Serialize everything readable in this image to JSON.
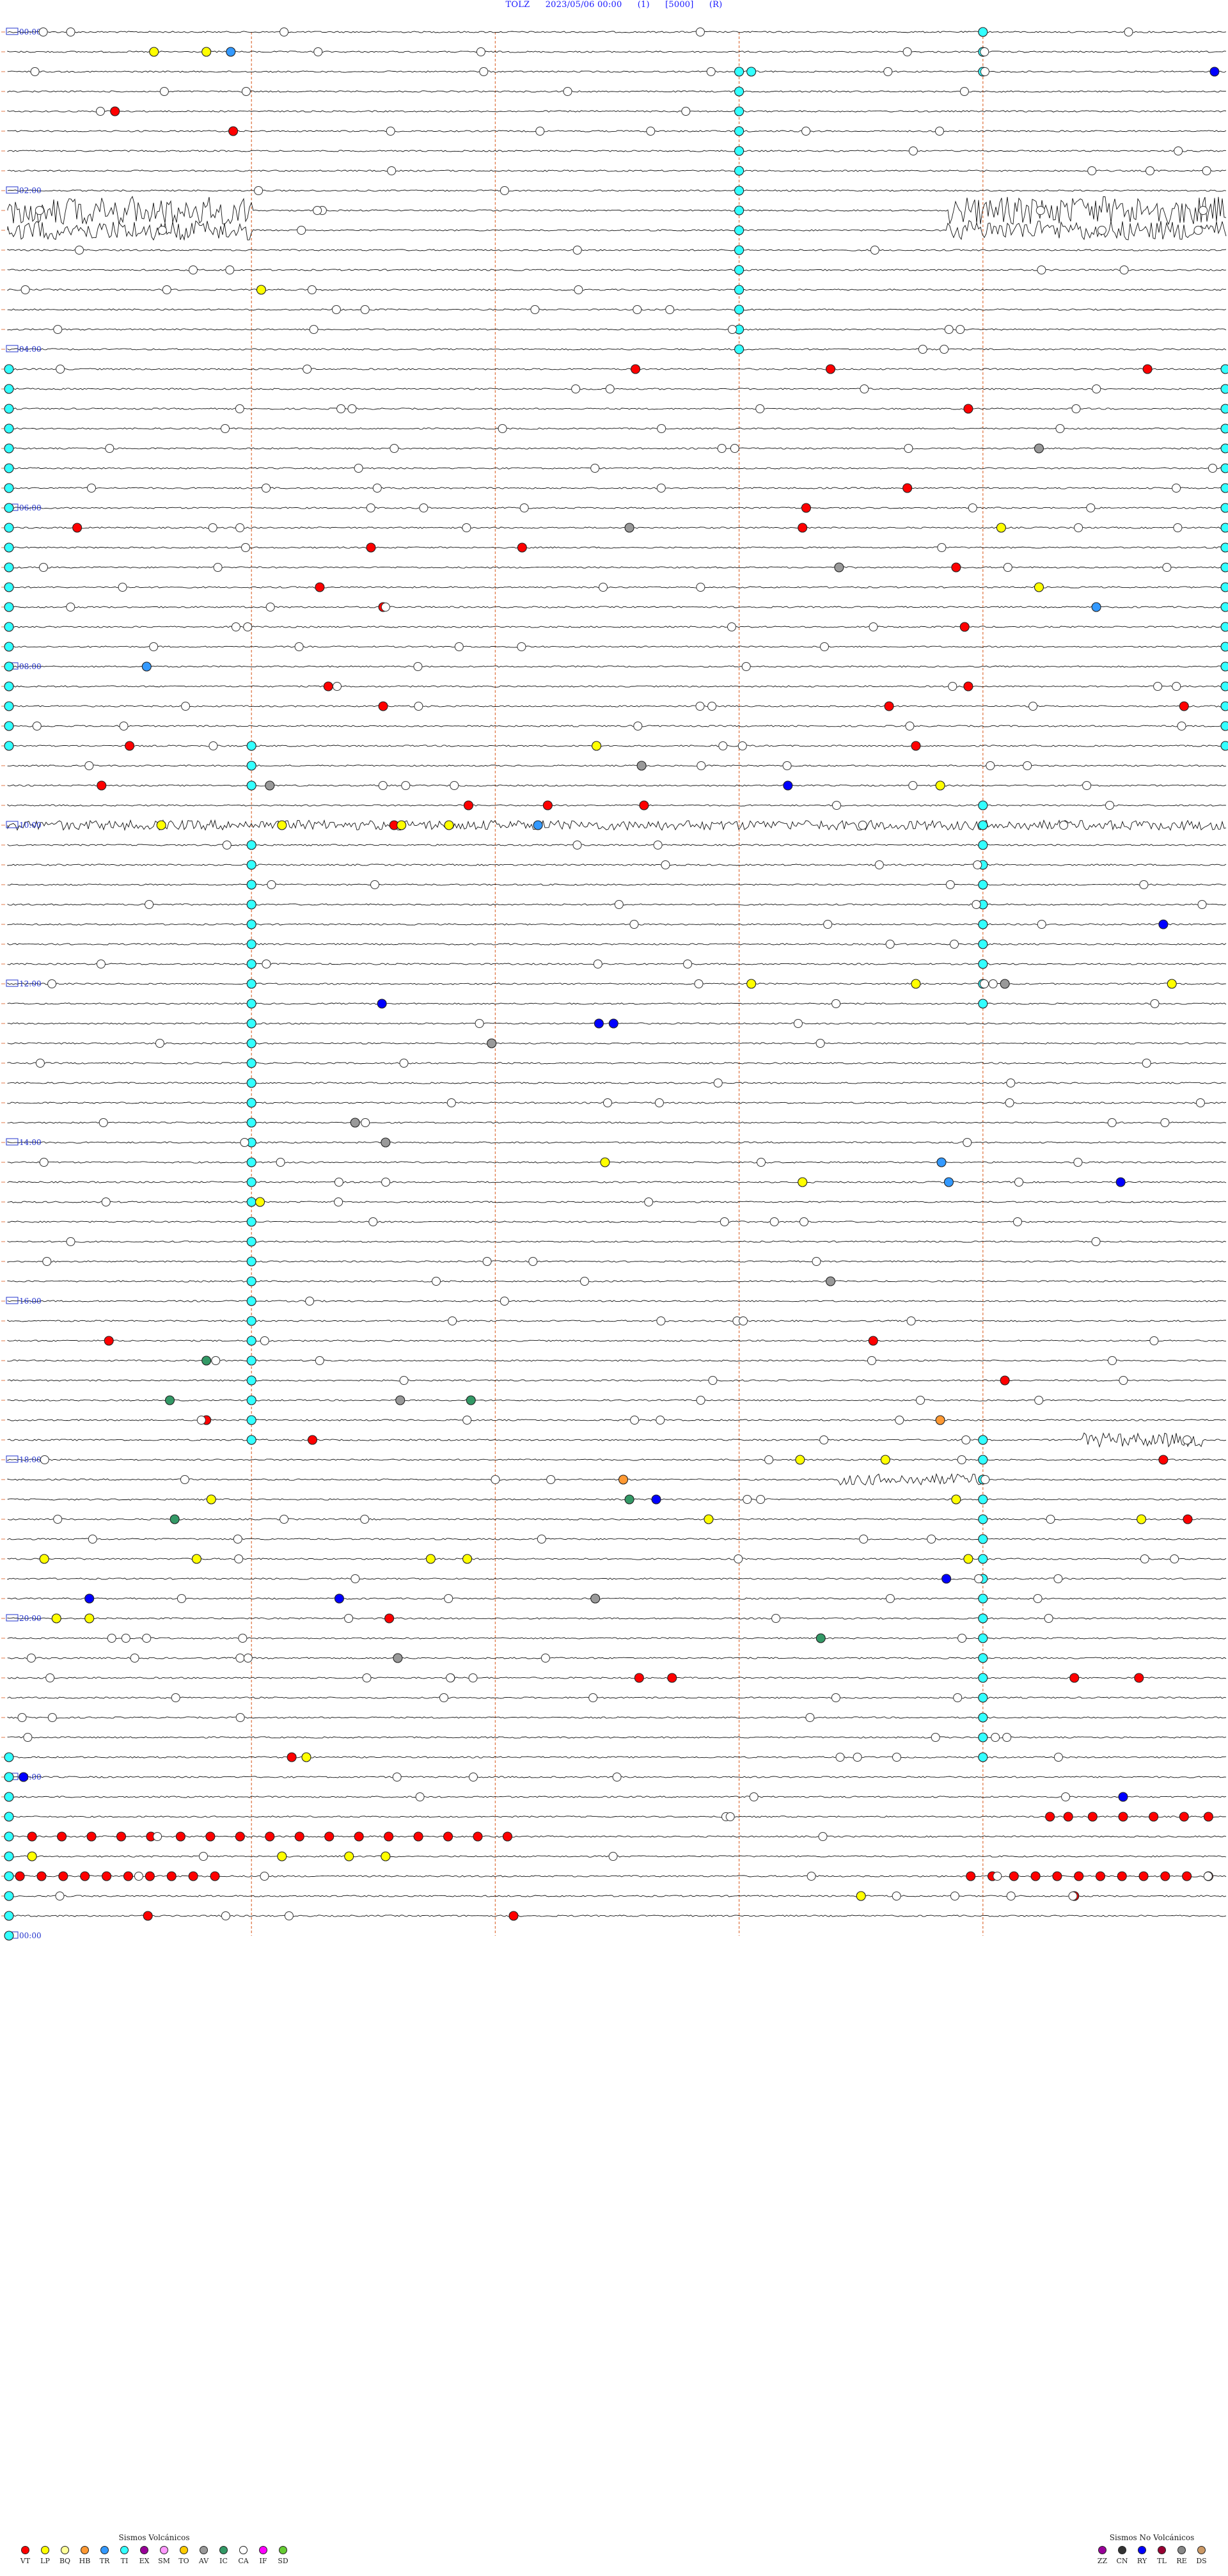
{
  "header": {
    "station": "TOLZ",
    "datetime": "2023/05/06 00:00",
    "channel": "(1)",
    "scale": "[5000]",
    "flag": "(R)"
  },
  "chart_data": {
    "type": "helicorder",
    "start": "2023/05/06 00:00",
    "hour_labels": [
      "00:00",
      "02:00",
      "04:00",
      "06:00",
      "08:00",
      "10:00",
      "12:00",
      "14:00",
      "16:00",
      "18:00",
      "20:00",
      "22:00",
      "00:00"
    ],
    "hour_label_rows": [
      0,
      8,
      16,
      24,
      32,
      40,
      48,
      56,
      64,
      72,
      80,
      88,
      96
    ],
    "rows": 96,
    "grid": true,
    "events": [
      {
        "row": 1,
        "x": 0.12,
        "type": "LP"
      },
      {
        "row": 1,
        "x": 0.163,
        "type": "LP"
      },
      {
        "row": 1,
        "x": 0.183,
        "type": "TR"
      },
      {
        "row": 2,
        "x": 0.61,
        "type": "TI"
      },
      {
        "row": 2,
        "x": 0.99,
        "type": "RY"
      },
      {
        "row": 4,
        "x": 0.088,
        "type": "VT"
      },
      {
        "row": 5,
        "x": 0.185,
        "type": "VT"
      },
      {
        "row": 13,
        "x": 0.208,
        "type": "LP"
      },
      {
        "row": 17,
        "x": 0.515,
        "type": "VT"
      },
      {
        "row": 17,
        "x": 0.675,
        "type": "VT"
      },
      {
        "row": 17,
        "x": 0.935,
        "type": "VT"
      },
      {
        "row": 19,
        "x": 0.788,
        "type": "VT"
      },
      {
        "row": 21,
        "x": 0.846,
        "type": "AV"
      },
      {
        "row": 23,
        "x": 0.738,
        "type": "VT"
      },
      {
        "row": 24,
        "x": 0.655,
        "type": "VT"
      },
      {
        "row": 25,
        "x": 0.057,
        "type": "VT"
      },
      {
        "row": 25,
        "x": 0.51,
        "type": "AV"
      },
      {
        "row": 25,
        "x": 0.652,
        "type": "VT"
      },
      {
        "row": 25,
        "x": 0.815,
        "type": "LP"
      },
      {
        "row": 26,
        "x": 0.298,
        "type": "VT"
      },
      {
        "row": 26,
        "x": 0.422,
        "type": "VT"
      },
      {
        "row": 27,
        "x": 0.682,
        "type": "AV"
      },
      {
        "row": 27,
        "x": 0.778,
        "type": "VT"
      },
      {
        "row": 28,
        "x": 0.256,
        "type": "VT"
      },
      {
        "row": 28,
        "x": 0.846,
        "type": "LP"
      },
      {
        "row": 29,
        "x": 0.308,
        "type": "VT"
      },
      {
        "row": 29,
        "x": 0.893,
        "type": "TR"
      },
      {
        "row": 30,
        "x": 0.785,
        "type": "VT"
      },
      {
        "row": 32,
        "x": 0.114,
        "type": "TR"
      },
      {
        "row": 33,
        "x": 0.263,
        "type": "VT"
      },
      {
        "row": 33,
        "x": 0.788,
        "type": "VT"
      },
      {
        "row": 34,
        "x": 0.308,
        "type": "VT"
      },
      {
        "row": 34,
        "x": 0.723,
        "type": "VT"
      },
      {
        "row": 34,
        "x": 0.965,
        "type": "VT"
      },
      {
        "row": 36,
        "x": 0.1,
        "type": "VT"
      },
      {
        "row": 36,
        "x": 0.483,
        "type": "LP"
      },
      {
        "row": 36,
        "x": 0.745,
        "type": "VT"
      },
      {
        "row": 37,
        "x": 0.52,
        "type": "AV"
      },
      {
        "row": 38,
        "x": 0.077,
        "type": "VT"
      },
      {
        "row": 38,
        "x": 0.215,
        "type": "AV"
      },
      {
        "row": 38,
        "x": 0.64,
        "type": "RY"
      },
      {
        "row": 38,
        "x": 0.765,
        "type": "LP"
      },
      {
        "row": 39,
        "x": 0.378,
        "type": "VT"
      },
      {
        "row": 39,
        "x": 0.443,
        "type": "VT"
      },
      {
        "row": 39,
        "x": 0.522,
        "type": "VT"
      },
      {
        "row": 40,
        "x": 0.126,
        "type": "LP"
      },
      {
        "row": 40,
        "x": 0.225,
        "type": "LP"
      },
      {
        "row": 40,
        "x": 0.317,
        "type": "VT"
      },
      {
        "row": 40,
        "x": 0.323,
        "type": "LP"
      },
      {
        "row": 40,
        "x": 0.362,
        "type": "LP"
      },
      {
        "row": 40,
        "x": 0.435,
        "type": "TR"
      },
      {
        "row": 45,
        "x": 0.948,
        "type": "RY"
      },
      {
        "row": 48,
        "x": 0.61,
        "type": "LP"
      },
      {
        "row": 48,
        "x": 0.745,
        "type": "LP"
      },
      {
        "row": 48,
        "x": 0.818,
        "type": "AV"
      },
      {
        "row": 48,
        "x": 0.955,
        "type": "LP"
      },
      {
        "row": 49,
        "x": 0.307,
        "type": "RY"
      },
      {
        "row": 50,
        "x": 0.497,
        "type": "RY"
      },
      {
        "row": 50,
        "x": 0.485,
        "type": "RY"
      },
      {
        "row": 51,
        "x": 0.397,
        "type": "AV"
      },
      {
        "row": 55,
        "x": 0.285,
        "type": "AV"
      },
      {
        "row": 56,
        "x": 0.31,
        "type": "AV"
      },
      {
        "row": 57,
        "x": 0.49,
        "type": "LP"
      },
      {
        "row": 57,
        "x": 0.766,
        "type": "TR"
      },
      {
        "row": 58,
        "x": 0.652,
        "type": "LP"
      },
      {
        "row": 58,
        "x": 0.772,
        "type": "TR"
      },
      {
        "row": 58,
        "x": 0.913,
        "type": "RY"
      },
      {
        "row": 59,
        "x": 0.207,
        "type": "LP"
      },
      {
        "row": 63,
        "x": 0.675,
        "type": "AV"
      },
      {
        "row": 66,
        "x": 0.083,
        "type": "VT"
      },
      {
        "row": 66,
        "x": 0.71,
        "type": "VT"
      },
      {
        "row": 67,
        "x": 0.163,
        "type": "IC"
      },
      {
        "row": 68,
        "x": 0.818,
        "type": "VT"
      },
      {
        "row": 69,
        "x": 0.38,
        "type": "IC"
      },
      {
        "row": 69,
        "x": 0.133,
        "type": "IC"
      },
      {
        "row": 69,
        "x": 0.322,
        "type": "AV"
      },
      {
        "row": 70,
        "x": 0.163,
        "type": "VT"
      },
      {
        "row": 70,
        "x": 0.765,
        "type": "HB"
      },
      {
        "row": 71,
        "x": 0.25,
        "type": "VT"
      },
      {
        "row": 72,
        "x": 0.65,
        "type": "LP"
      },
      {
        "row": 72,
        "x": 0.72,
        "type": "LP"
      },
      {
        "row": 72,
        "x": 0.948,
        "type": "VT"
      },
      {
        "row": 73,
        "x": 0.505,
        "type": "HB"
      },
      {
        "row": 74,
        "x": 0.167,
        "type": "LP"
      },
      {
        "row": 74,
        "x": 0.51,
        "type": "IC"
      },
      {
        "row": 74,
        "x": 0.532,
        "type": "RY"
      },
      {
        "row": 74,
        "x": 0.778,
        "type": "LP"
      },
      {
        "row": 75,
        "x": 0.137,
        "type": "IC"
      },
      {
        "row": 75,
        "x": 0.575,
        "type": "LP"
      },
      {
        "row": 75,
        "x": 0.93,
        "type": "LP"
      },
      {
        "row": 75,
        "x": 0.968,
        "type": "VT"
      },
      {
        "row": 77,
        "x": 0.03,
        "type": "LP"
      },
      {
        "row": 77,
        "x": 0.155,
        "type": "LP"
      },
      {
        "row": 77,
        "x": 0.347,
        "type": "LP"
      },
      {
        "row": 77,
        "x": 0.377,
        "type": "LP"
      },
      {
        "row": 77,
        "x": 0.788,
        "type": "LP"
      },
      {
        "row": 78,
        "x": 0.77,
        "type": "RY"
      },
      {
        "row": 79,
        "x": 0.067,
        "type": "RY"
      },
      {
        "row": 79,
        "x": 0.272,
        "type": "RY"
      },
      {
        "row": 79,
        "x": 0.482,
        "type": "AV"
      },
      {
        "row": 80,
        "x": 0.04,
        "type": "LP"
      },
      {
        "row": 80,
        "x": 0.067,
        "type": "LP"
      },
      {
        "row": 80,
        "x": 0.313,
        "type": "VT"
      },
      {
        "row": 81,
        "x": 0.667,
        "type": "IC"
      },
      {
        "row": 82,
        "x": 0.32,
        "type": "AV"
      },
      {
        "row": 83,
        "x": 0.518,
        "type": "VT"
      },
      {
        "row": 83,
        "x": 0.545,
        "type": "VT"
      },
      {
        "row": 83,
        "x": 0.875,
        "type": "VT"
      },
      {
        "row": 83,
        "x": 0.928,
        "type": "VT"
      },
      {
        "row": 87,
        "x": 0.233,
        "type": "VT"
      },
      {
        "row": 87,
        "x": 0.245,
        "type": "LP"
      },
      {
        "row": 88,
        "x": 0.013,
        "type": "RY"
      },
      {
        "row": 89,
        "x": 0.915,
        "type": "RY"
      },
      {
        "row": 90,
        "x": 0.855,
        "type": "VT"
      },
      {
        "row": 90,
        "x": 0.87,
        "type": "VT"
      },
      {
        "row": 90,
        "x": 0.89,
        "type": "VT"
      },
      {
        "row": 90,
        "x": 0.915,
        "type": "VT"
      },
      {
        "row": 90,
        "x": 0.94,
        "type": "VT"
      },
      {
        "row": 90,
        "x": 0.965,
        "type": "VT"
      },
      {
        "row": 90,
        "x": 0.985,
        "type": "VT"
      },
      {
        "row": 92,
        "x": 0.02,
        "type": "LP"
      },
      {
        "row": 92,
        "x": 0.225,
        "type": "LP"
      },
      {
        "row": 92,
        "x": 0.28,
        "type": "LP"
      },
      {
        "row": 92,
        "x": 0.31,
        "type": "LP"
      },
      {
        "row": 94,
        "x": 0.7,
        "type": "LP"
      },
      {
        "row": 94,
        "x": 0.875,
        "type": "VT"
      },
      {
        "row": 95,
        "x": 0.115,
        "type": "VT"
      },
      {
        "row": 95,
        "x": 0.415,
        "type": "VT"
      }
    ],
    "event_runs": [
      {
        "row": 91,
        "x0": 0.02,
        "x1": 0.41,
        "count": 17,
        "type": "VT"
      },
      {
        "row": 91,
        "x0": 0.49,
        "x1": 0.41,
        "count": 0,
        "type": "VT"
      },
      {
        "row": 93,
        "x0": 0.01,
        "x1": 0.17,
        "count": 10,
        "type": "VT"
      },
      {
        "row": 93,
        "x0": 0.79,
        "x1": 0.985,
        "count": 12,
        "type": "VT"
      }
    ],
    "tremor_columns": [
      {
        "x": 0.6,
        "row0": 2,
        "row1": 16,
        "type": "TI"
      },
      {
        "x": 0.8,
        "row0": 0,
        "row1": 2,
        "type": "TI"
      },
      {
        "x": 0.8,
        "row0": 39,
        "row1": 49,
        "type": "TI"
      },
      {
        "x": 0.2,
        "row0": 36,
        "row1": 38,
        "type": "TI"
      },
      {
        "x": 0.2,
        "row0": 41,
        "row1": 71,
        "type": "TI"
      },
      {
        "x": 0.8,
        "row0": 71,
        "row1": 76,
        "type": "TI"
      },
      {
        "x": 0.8,
        "row0": 77,
        "row1": 87,
        "type": "TI"
      },
      {
        "x": 0.0,
        "row0": 17,
        "row1": 36,
        "type": "TI"
      },
      {
        "x": 1.0,
        "row0": 17,
        "row1": 36,
        "type": "TI"
      },
      {
        "x": 0.0,
        "row0": 87,
        "row1": 96,
        "type": "TI"
      }
    ],
    "noise_bursts": [
      {
        "row": 9,
        "x0": 0.0,
        "x1": 0.2,
        "amp": 1.0
      },
      {
        "row": 9,
        "x0": 0.77,
        "x1": 1.0,
        "amp": 1.0
      },
      {
        "row": 10,
        "x0": 0.0,
        "x1": 0.2,
        "amp": 0.7
      },
      {
        "row": 10,
        "x0": 0.77,
        "x1": 1.0,
        "amp": 0.7
      },
      {
        "row": 40,
        "x0": 0.0,
        "x1": 1.0,
        "amp": 0.35
      },
      {
        "row": 73,
        "x0": 0.68,
        "x1": 0.8,
        "amp": 0.4
      },
      {
        "row": 71,
        "x0": 0.88,
        "x1": 0.98,
        "amp": 0.5
      }
    ]
  },
  "legend_volcanic": {
    "title": "Sismos Volcánicos",
    "items": [
      {
        "label": "VT",
        "color": "#ff0000"
      },
      {
        "label": "LP",
        "color": "#ffff00"
      },
      {
        "label": "BQ",
        "color": "#ffff99"
      },
      {
        "label": "HB",
        "color": "#ff9933"
      },
      {
        "label": "TR",
        "color": "#3399ff"
      },
      {
        "label": "TI",
        "color": "#33ffff"
      },
      {
        "label": "EX",
        "color": "#990099"
      },
      {
        "label": "SM",
        "color": "#ff99ff"
      },
      {
        "label": "TO",
        "color": "#ffcc00"
      },
      {
        "label": "AV",
        "color": "#999999"
      },
      {
        "label": "IC",
        "color": "#339966"
      },
      {
        "label": "CA",
        "color": "#ffffff"
      },
      {
        "label": "IF",
        "color": "#ff00ff"
      },
      {
        "label": "SD",
        "color": "#66cc33"
      }
    ]
  },
  "legend_nonvolcanic": {
    "title": "Sismos No Volcánicos",
    "items": [
      {
        "label": "ZZ",
        "color": "#990099"
      },
      {
        "label": "CN",
        "color": "#333333"
      },
      {
        "label": "RY",
        "color": "#0000ff"
      },
      {
        "label": "TL",
        "color": "#990033"
      },
      {
        "label": "RE",
        "color": "#888888"
      },
      {
        "label": "DS",
        "color": "#cc9966"
      }
    ]
  }
}
